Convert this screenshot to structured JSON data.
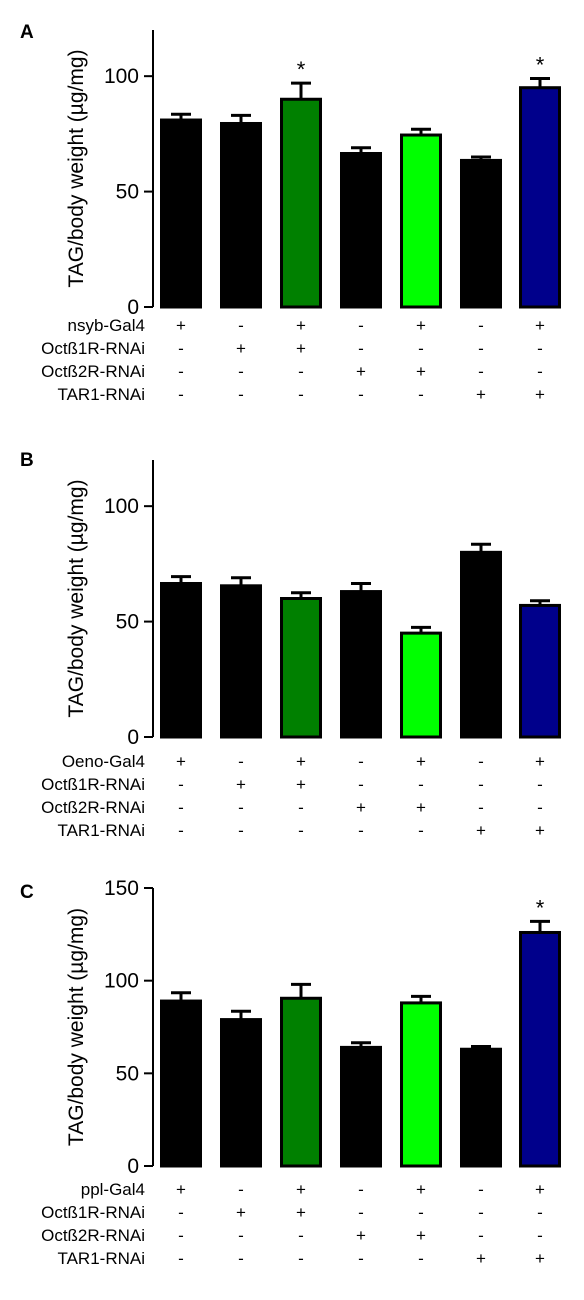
{
  "chart_data": [
    {
      "type": "bar",
      "panel": "A",
      "ylabel": "TAG/body weight (µg/mg)",
      "ylim": [
        0,
        120
      ],
      "yticks": [
        0,
        50,
        100
      ],
      "grid": false,
      "legend": "none",
      "values": [
        81,
        79.5,
        90,
        66.5,
        74.5,
        63.5,
        95
      ],
      "errors": [
        2.5,
        3.5,
        7,
        2.5,
        2.5,
        1.5,
        4
      ],
      "significance": [
        "",
        "",
        "*",
        "",
        "",
        "",
        "*"
      ],
      "bar_colors": [
        "#000000",
        "#000000",
        "#008000",
        "#000000",
        "#00ff00",
        "#000000",
        "#00008b"
      ],
      "rows": [
        {
          "label": "nsyb-Gal4",
          "signs": [
            "+",
            "-",
            "+",
            "-",
            "+",
            "-",
            "+"
          ]
        },
        {
          "label": "Octß1R-RNAi",
          "signs": [
            "-",
            "+",
            "+",
            "-",
            "-",
            "-",
            "-"
          ]
        },
        {
          "label": "Octß2R-RNAi",
          "signs": [
            "-",
            "-",
            "-",
            "+",
            "+",
            "-",
            "-"
          ]
        },
        {
          "label": "TAR1-RNAi",
          "signs": [
            "-",
            "-",
            "-",
            "-",
            "-",
            "+",
            "+"
          ]
        }
      ]
    },
    {
      "type": "bar",
      "panel": "B",
      "ylabel": "TAG/body weight (µg/mg)",
      "ylim": [
        0,
        120
      ],
      "yticks": [
        0,
        50,
        100
      ],
      "grid": false,
      "legend": "none",
      "values": [
        66.5,
        65.5,
        60,
        63,
        45,
        80,
        57
      ],
      "errors": [
        3,
        3.5,
        2.5,
        3.5,
        2.5,
        3.5,
        2
      ],
      "significance": [
        "",
        "",
        "",
        "",
        "",
        "",
        ""
      ],
      "bar_colors": [
        "#000000",
        "#000000",
        "#008000",
        "#000000",
        "#00ff00",
        "#000000",
        "#00008b"
      ],
      "rows": [
        {
          "label": "Oeno-Gal4",
          "signs": [
            "+",
            "-",
            "+",
            "-",
            "+",
            "-",
            "+"
          ]
        },
        {
          "label": "Octß1R-RNAi",
          "signs": [
            "-",
            "+",
            "+",
            "-",
            "-",
            "-",
            "-"
          ]
        },
        {
          "label": "Octß2R-RNAi",
          "signs": [
            "-",
            "-",
            "-",
            "+",
            "+",
            "-",
            "-"
          ]
        },
        {
          "label": "TAR1-RNAi",
          "signs": [
            "-",
            "-",
            "-",
            "-",
            "-",
            "+",
            "+"
          ]
        }
      ]
    },
    {
      "type": "bar",
      "panel": "C",
      "ylabel": "TAG/body weight (µg/mg)",
      "ylim": [
        0,
        150
      ],
      "yticks": [
        0,
        50,
        100,
        150
      ],
      "grid": false,
      "legend": "none",
      "values": [
        89,
        79,
        90.5,
        64,
        88,
        63,
        126
      ],
      "errors": [
        4.5,
        4.5,
        7.5,
        2.5,
        3.5,
        1.5,
        6
      ],
      "significance": [
        "",
        "",
        "",
        "",
        "",
        "",
        "*"
      ],
      "bar_colors": [
        "#000000",
        "#000000",
        "#008000",
        "#000000",
        "#00ff00",
        "#000000",
        "#00008b"
      ],
      "rows": [
        {
          "label": "ppl-Gal4",
          "signs": [
            "+",
            "-",
            "+",
            "-",
            "+",
            "-",
            "+"
          ]
        },
        {
          "label": "Octß1R-RNAi",
          "signs": [
            "-",
            "+",
            "+",
            "-",
            "-",
            "-",
            "-"
          ]
        },
        {
          "label": "Octß2R-RNAi",
          "signs": [
            "-",
            "-",
            "-",
            "+",
            "+",
            "-",
            "-"
          ]
        },
        {
          "label": "TAR1-RNAi",
          "signs": [
            "-",
            "-",
            "-",
            "-",
            "-",
            "+",
            "+"
          ]
        }
      ]
    }
  ]
}
